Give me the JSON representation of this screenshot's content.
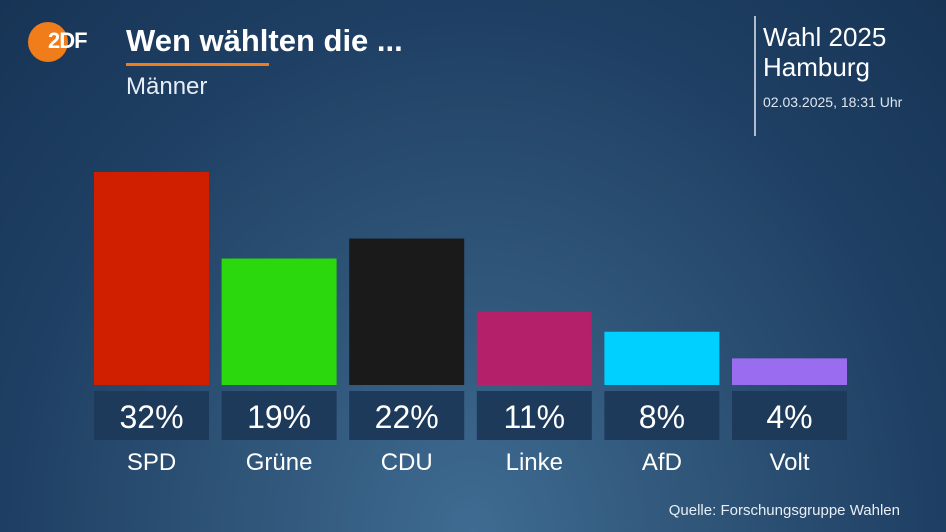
{
  "header": {
    "logo_text": "2DF",
    "title": "Wen wählten die ...",
    "subtitle": "Männer",
    "election": "Wahl 2025",
    "region": "Hamburg",
    "datetime": "02.03.2025, 18:31 Uhr"
  },
  "footer": {
    "source": "Quelle: Forschungsgruppe Wahlen"
  },
  "colors": {
    "brand": "#f07d19",
    "label_box": "#1d3a5a"
  },
  "chart_data": {
    "type": "bar",
    "categories": [
      "SPD",
      "Grüne",
      "CDU",
      "Linke",
      "AfD",
      "Volt"
    ],
    "values": [
      32,
      19,
      22,
      11,
      8,
      4
    ],
    "value_labels": [
      "32%",
      "19%",
      "22%",
      "11%",
      "8%",
      "4%"
    ],
    "colors": [
      "#d01e00",
      "#2bd80d",
      "#1a1a1a",
      "#b5206a",
      "#00d0ff",
      "#9a6cf0"
    ],
    "title": "Wen wählten die ...",
    "subtitle": "Männer",
    "xlabel": "",
    "ylabel": "",
    "grid": false,
    "legend": "none"
  }
}
